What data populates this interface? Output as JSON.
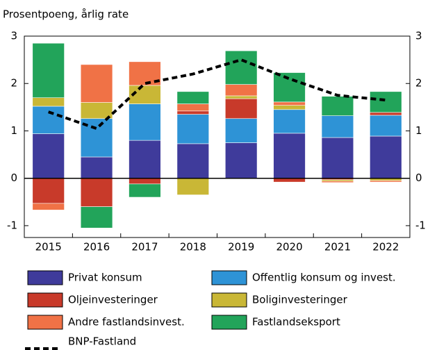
{
  "chart_data": {
    "type": "bar",
    "stacked": true,
    "subtitle": "Prosentpoeng, årlig rate",
    "categories": [
      "2015",
      "2016",
      "2017",
      "2018",
      "2019",
      "2020",
      "2021",
      "2022"
    ],
    "series": [
      {
        "name": "Privat konsum",
        "color": "#3f3b9b",
        "values": [
          0.94,
          0.45,
          0.8,
          0.73,
          0.75,
          0.95,
          0.86,
          0.89
        ]
      },
      {
        "name": "Offentlig konsum og invest.",
        "color": "#2e93d6",
        "values": [
          0.58,
          0.81,
          0.77,
          0.62,
          0.51,
          0.5,
          0.46,
          0.44
        ]
      },
      {
        "name": "Oljeinvesteringer",
        "color": "#c83a2a",
        "values": [
          -0.53,
          -0.6,
          -0.12,
          0.07,
          0.42,
          -0.08,
          -0.03,
          0.06
        ]
      },
      {
        "name": "Boliginvesteringer",
        "color": "#c9b736",
        "values": [
          0.18,
          0.34,
          0.39,
          -0.35,
          0.06,
          0.09,
          -0.03,
          -0.05
        ]
      },
      {
        "name": "Andre fastlandsinvest.",
        "color": "#f07246",
        "values": [
          -0.14,
          0.8,
          0.5,
          0.15,
          0.24,
          0.07,
          -0.03,
          -0.03
        ]
      },
      {
        "name": "Fastlandseksport",
        "color": "#22a45a",
        "values": [
          1.15,
          -0.45,
          -0.28,
          0.26,
          0.71,
          0.62,
          0.41,
          0.44
        ]
      },
      {
        "name": "BNP-Fastland",
        "type": "line",
        "color": "#000000",
        "values": [
          1.4,
          1.05,
          2.0,
          2.2,
          2.5,
          2.1,
          1.75,
          1.65
        ]
      }
    ],
    "ylim": [
      -1.25,
      3
    ],
    "yticks": [
      -1,
      0,
      1,
      2,
      3
    ],
    "y2lim": [
      -1.25,
      3
    ],
    "y2ticks": [
      -1,
      0,
      1,
      2,
      3
    ],
    "grid": false,
    "legend": "bottom"
  }
}
